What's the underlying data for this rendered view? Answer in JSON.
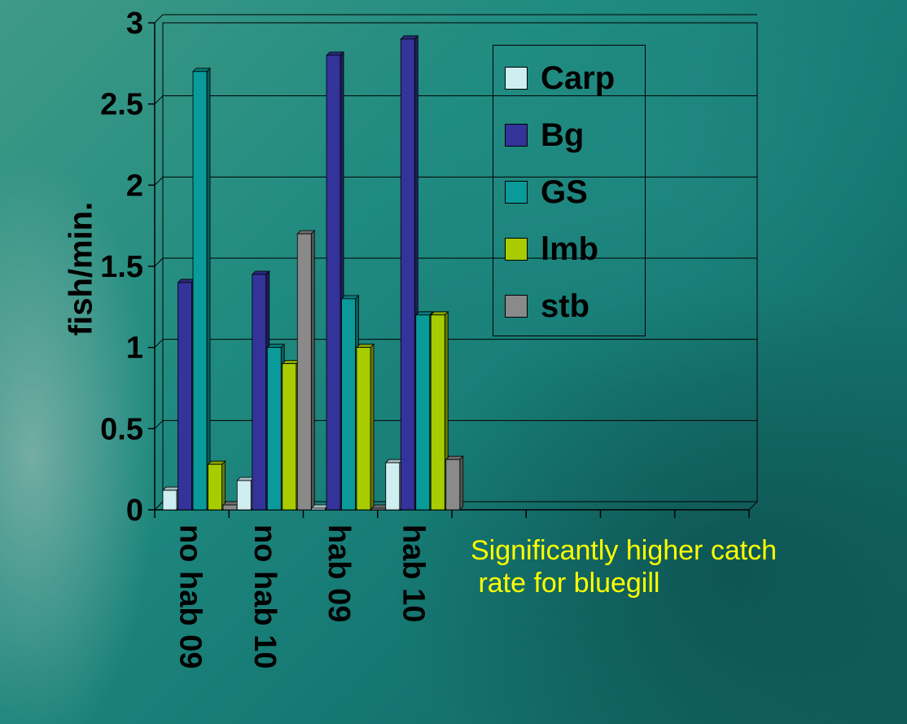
{
  "chart_data": {
    "type": "bar",
    "categories": [
      "no hab 09",
      "no hab 10",
      "hab 09",
      "hab 10",
      "",
      "",
      "",
      ""
    ],
    "series": [
      {
        "name": "Carp",
        "color": "#cfeef2",
        "values": [
          0.12,
          0.18,
          0.01,
          0.29,
          0,
          0,
          0,
          0
        ]
      },
      {
        "name": "Bg",
        "color": "#33339a",
        "values": [
          1.4,
          1.45,
          2.8,
          2.9,
          0,
          0,
          0,
          0
        ]
      },
      {
        "name": "GS",
        "color": "#0a9a9a",
        "values": [
          2.7,
          1.0,
          1.3,
          1.2,
          0,
          0,
          0,
          0
        ]
      },
      {
        "name": "lmb",
        "color": "#a8cc00",
        "values": [
          0.28,
          0.9,
          1.0,
          1.2,
          0,
          0,
          0,
          0
        ]
      },
      {
        "name": "stb",
        "color": "#8a8a8a",
        "values": [
          0.03,
          1.7,
          0.01,
          0.31,
          0,
          0,
          0,
          0
        ]
      }
    ],
    "ylabel": "fish/min.",
    "ylim": [
      0,
      3
    ],
    "yticks": [
      "0",
      "0.5",
      "1",
      "1.5",
      "2",
      "2.5",
      "3"
    ],
    "grid": true,
    "legend_position": "top-right",
    "annotation": "Significantly higher catch\n rate for bluegill"
  }
}
